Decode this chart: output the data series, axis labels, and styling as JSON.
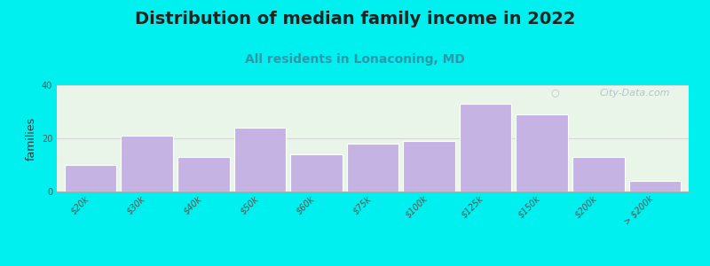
{
  "title": "Distribution of median family income in 2022",
  "subtitle": "All residents in Lonaconing, MD",
  "ylabel": "families",
  "categories": [
    "$20k",
    "$30k",
    "$40k",
    "$50k",
    "$60k",
    "$75k",
    "$100k",
    "$125k",
    "$150k",
    "$200k",
    "> $200k"
  ],
  "values": [
    10,
    21,
    13,
    24,
    14,
    18,
    19,
    33,
    29,
    13,
    4
  ],
  "bar_color": "#c5b4e3",
  "bar_edge_color": "#ffffff",
  "ylim": [
    0,
    40
  ],
  "yticks": [
    0,
    20,
    40
  ],
  "background_outer": "#00efef",
  "title_fontsize": 14,
  "subtitle_fontsize": 10,
  "subtitle_color": "#2a9aaa",
  "ylabel_fontsize": 9,
  "tick_label_fontsize": 7,
  "watermark_text": "City-Data.com",
  "watermark_color": "#aabbcc",
  "bar_width": 0.92,
  "plot_bg_left_color": "#e8f5e8",
  "plot_bg_right_color": "#f5f5ea"
}
